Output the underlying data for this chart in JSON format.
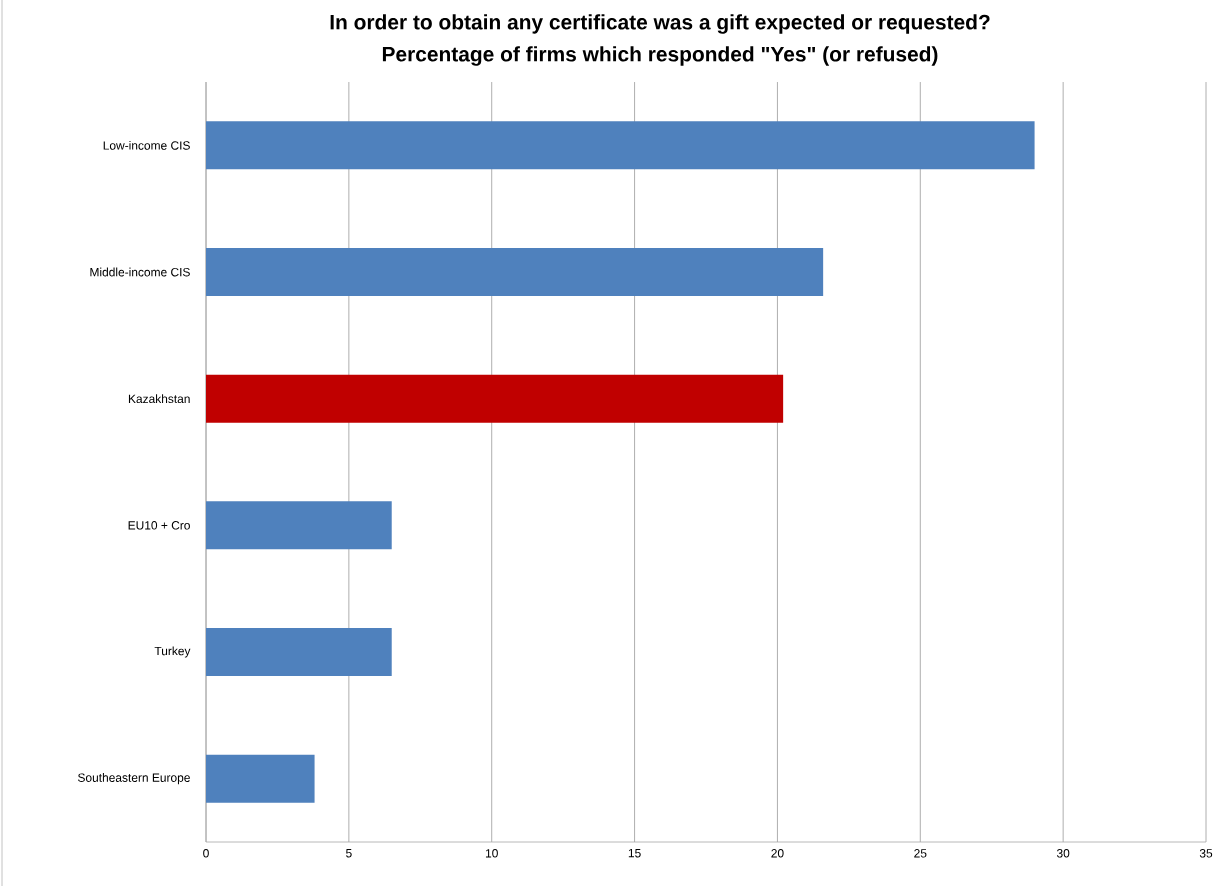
{
  "chart_data": {
    "type": "bar",
    "orientation": "horizontal",
    "title": "In order to obtain any certificate was a gift expected or requested?",
    "subtitle": "Percentage of firms which responded \"Yes\" (or refused)",
    "categories": [
      "Low-income CIS",
      "Middle-income CIS",
      "Kazakhstan",
      "EU10 + Cro",
      "Turkey",
      "Southeastern Europe"
    ],
    "values": [
      29.0,
      21.6,
      20.2,
      6.5,
      6.5,
      3.8
    ],
    "colors": [
      "#4f81bd",
      "#4f81bd",
      "#c00000",
      "#4f81bd",
      "#4f81bd",
      "#4f81bd"
    ],
    "xlim": [
      0,
      35
    ],
    "xticks": [
      0,
      5,
      10,
      15,
      20,
      25,
      30,
      35
    ],
    "grid": "x"
  }
}
